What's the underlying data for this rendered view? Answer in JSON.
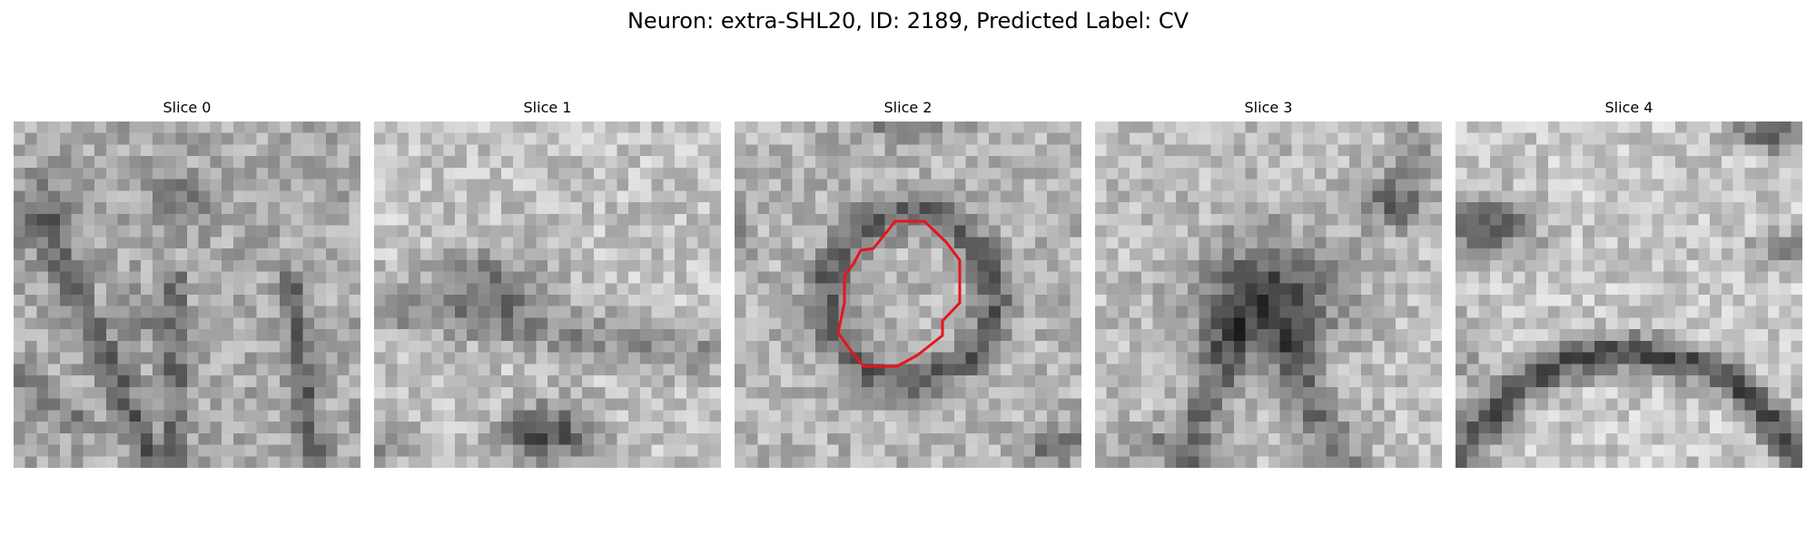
{
  "figure": {
    "title": "Neuron: extra-SHL20, ID: 2189, Predicted Label: CV"
  },
  "panels": [
    {
      "label": "Slice 0",
      "texture": "slice-0",
      "has_contour": false
    },
    {
      "label": "Slice 1",
      "texture": "slice-1",
      "has_contour": false
    },
    {
      "label": "Slice 2",
      "texture": "slice-2",
      "has_contour": true
    },
    {
      "label": "Slice 3",
      "texture": "slice-3",
      "has_contour": false
    },
    {
      "label": "Slice 4",
      "texture": "slice-4",
      "has_contour": false
    }
  ],
  "colors": {
    "contour": "#e8141c",
    "colormap": "grayscale"
  }
}
